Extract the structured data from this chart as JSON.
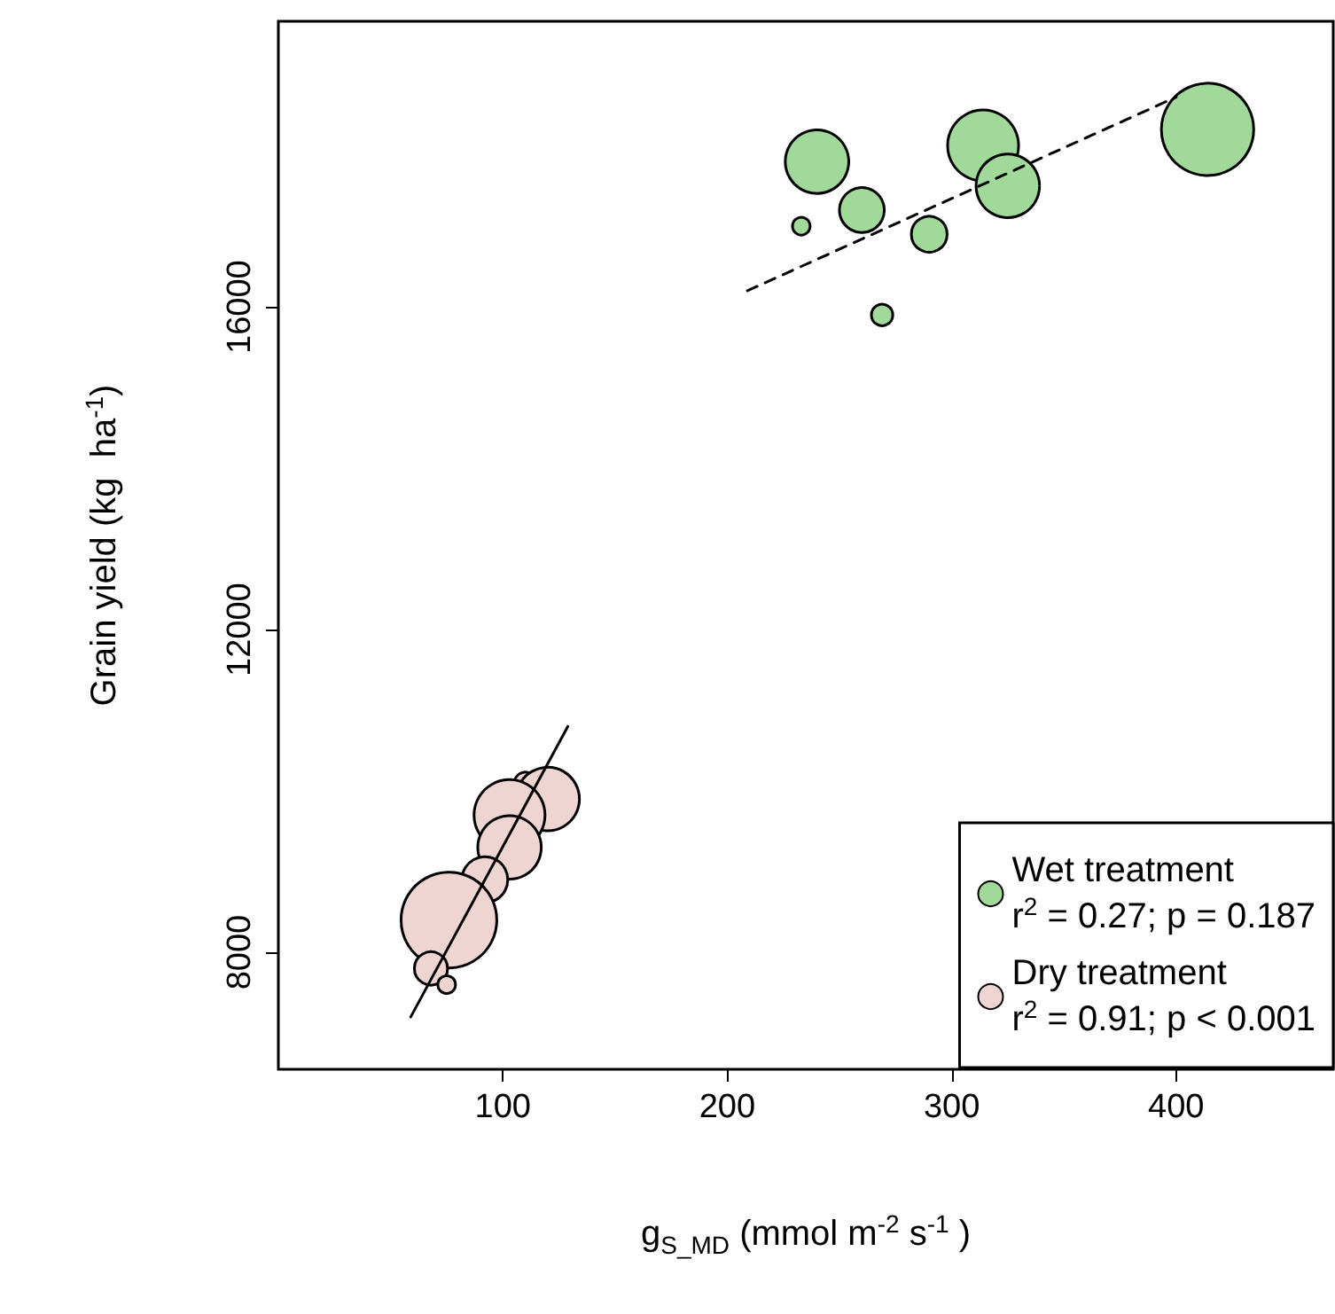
{
  "chart_data": {
    "type": "bubble",
    "xlabel": "g$_{S_MD}$ (mmol m$^{-2}$ s$^{-1}$ )",
    "ylabel": "Grain yield (kg  ha$^{-1}$)",
    "xlim": [
      0,
      470
    ],
    "xticks": [
      100,
      200,
      300,
      400
    ],
    "ylim": [
      6550,
      19540
    ],
    "yticks": [
      8000,
      12000,
      16000
    ],
    "grid": false,
    "legend": "bottom right",
    "annotations": [
      "r$^{2}$ = 0.27; p = 0.187",
      "r$^{2}$ = 0.91; p < 0.001"
    ],
    "series": [
      {
        "name": "Wet treatment",
        "color": "#a1d99b",
        "marker": "circle",
        "x": [
          240,
          233,
          260,
          269,
          290,
          314,
          325,
          414
        ],
        "values": [
          17800,
          17000,
          17200,
          15900,
          16900,
          18000,
          17500,
          18200
        ],
        "sizes": [
          0.44,
          0.034,
          0.22,
          0.05,
          0.14,
          0.55,
          0.44,
          0.93
        ]
      },
      {
        "name": "Dry treatment",
        "color": "#eed5d2",
        "marker": "circle",
        "x": [
          110,
          120,
          103,
          103,
          92,
          76,
          68,
          75
        ],
        "values": [
          10100,
          9900,
          9700,
          9300,
          8900,
          8400,
          7800,
          7600
        ],
        "sizes": [
          0.05,
          0.44,
          0.55,
          0.44,
          0.23,
          1,
          0.12,
          0.034
        ]
      },
      {
        "type": "line",
        "color": "#000000",
        "line_style": "dashed",
        "x": [
          209,
          400
        ],
        "values": [
          16200,
          18600
        ]
      },
      {
        "type": "line",
        "color": "#000000",
        "line_style": "solid",
        "x": [
          59,
          129
        ],
        "values": [
          7200,
          10800
        ]
      }
    ]
  }
}
